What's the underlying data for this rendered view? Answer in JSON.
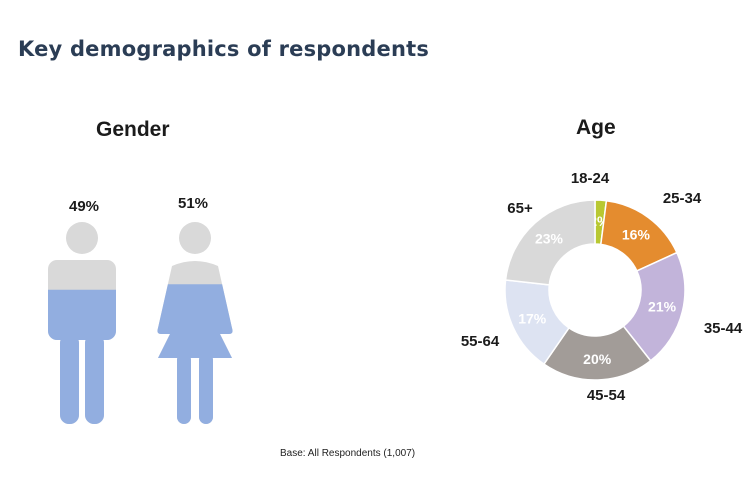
{
  "page": {
    "title": "Key demographics of respondents",
    "base_note": "Base: All Respondents (1,007)"
  },
  "gender": {
    "title": "Gender",
    "male": {
      "value": "49%",
      "fill_fraction": 0.49
    },
    "female": {
      "value": "51%",
      "fill_fraction": 0.51
    },
    "colors": {
      "filled": "#92aee0",
      "empty": "#d9d9d9"
    }
  },
  "chart_data": [
    {
      "type": "pie",
      "title": "Gender",
      "categories": [
        "",
        ""
      ],
      "values": [
        49,
        51
      ],
      "labels": [
        "49%",
        "51%"
      ],
      "icons": [
        "male-figure-icon",
        "female-figure-icon"
      ]
    },
    {
      "type": "pie",
      "title": "Age",
      "donut": true,
      "categories": [
        "18-24",
        "25-34",
        "35-44",
        "45-54",
        "55-64",
        "65+"
      ],
      "values": [
        2,
        16,
        21,
        20,
        17,
        23
      ],
      "labels": [
        "2%",
        "16%",
        "21%",
        "20%",
        "17%",
        "23%"
      ],
      "colors": [
        "#b8c832",
        "#e48c2f",
        "#c2b4da",
        "#a29c98",
        "#dde3f2",
        "#d9d9d9"
      ],
      "label_colors": [
        "#ffffff",
        "#ffffff",
        "#ffffff",
        "#ffffff",
        "#ffffff",
        "#ffffff"
      ]
    }
  ]
}
